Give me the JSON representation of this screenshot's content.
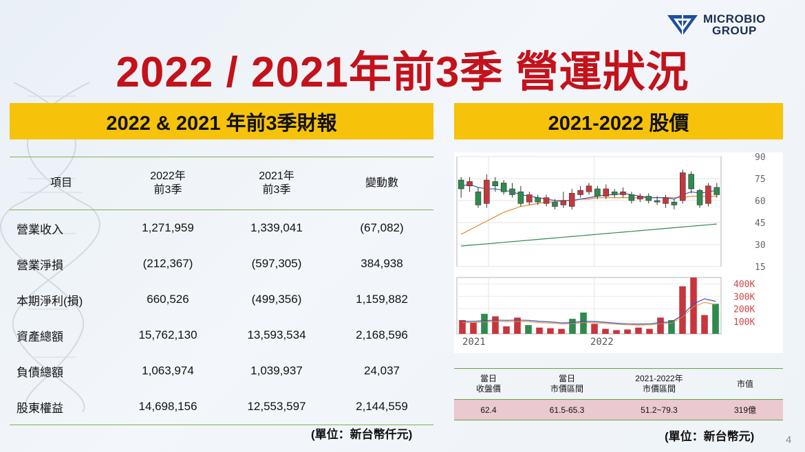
{
  "logo": {
    "line1": "MICROBIO",
    "line2": "GROUP"
  },
  "title": "2022 / 2021年前3季 營運狀況",
  "left_banner": "2022 & 2021 年前3季財報",
  "right_banner": "2021-2022 股價",
  "fin_table": {
    "headers": [
      "項目",
      "2022年\n前3季",
      "2021年\n前3季",
      "變動數"
    ],
    "h1": "項目",
    "h2a": "2022年",
    "h2b": "前3季",
    "h3a": "2021年",
    "h3b": "前3季",
    "h4": "變動數",
    "rows": [
      [
        "營業收入",
        "1,271,959",
        "1,339,041",
        "(67,082)"
      ],
      [
        "營業淨損",
        "(212,367)",
        "(597,305)",
        "384,938"
      ],
      [
        "本期淨利(損)",
        "660,526",
        "(499,356)",
        "1,159,882"
      ],
      [
        "資產總額",
        "15,762,130",
        "13,593,534",
        "2,168,596"
      ],
      [
        "負債總額",
        "1,063,974",
        "1,039,937",
        "24,037"
      ],
      [
        "股東權益",
        "14,698,156",
        "12,553,597",
        "2,144,559"
      ]
    ]
  },
  "fin_unit": "(單位：新台幣仟元)",
  "chart_data": [
    {
      "type": "candlestick",
      "y_ticks": [
        "90",
        "75",
        "60",
        "45",
        "30",
        "15"
      ],
      "ylim": [
        15,
        90
      ],
      "candles": [
        {
          "o": 74,
          "c": 68,
          "h": 76,
          "l": 62
        },
        {
          "o": 70,
          "c": 73,
          "h": 76,
          "l": 66
        },
        {
          "o": 66,
          "c": 57,
          "h": 69,
          "l": 55
        },
        {
          "o": 58,
          "c": 74,
          "h": 78,
          "l": 55
        },
        {
          "o": 73,
          "c": 70,
          "h": 76,
          "l": 66
        },
        {
          "o": 72,
          "c": 66,
          "h": 74,
          "l": 64
        },
        {
          "o": 68,
          "c": 64,
          "h": 72,
          "l": 62
        },
        {
          "o": 66,
          "c": 58,
          "h": 70,
          "l": 56
        },
        {
          "o": 59,
          "c": 64,
          "h": 66,
          "l": 57
        },
        {
          "o": 62,
          "c": 59,
          "h": 64,
          "l": 57
        },
        {
          "o": 58,
          "c": 62,
          "h": 64,
          "l": 56
        },
        {
          "o": 59,
          "c": 56,
          "h": 61,
          "l": 54
        },
        {
          "o": 57,
          "c": 60,
          "h": 66,
          "l": 55
        },
        {
          "o": 56,
          "c": 65,
          "h": 68,
          "l": 54
        },
        {
          "o": 64,
          "c": 67,
          "h": 70,
          "l": 62
        },
        {
          "o": 66,
          "c": 70,
          "h": 72,
          "l": 64
        },
        {
          "o": 68,
          "c": 63,
          "h": 70,
          "l": 61
        },
        {
          "o": 63,
          "c": 68,
          "h": 71,
          "l": 61
        },
        {
          "o": 66,
          "c": 64,
          "h": 68,
          "l": 62
        },
        {
          "o": 64,
          "c": 66,
          "h": 69,
          "l": 62
        },
        {
          "o": 64,
          "c": 60,
          "h": 66,
          "l": 58
        },
        {
          "o": 61,
          "c": 63,
          "h": 65,
          "l": 59
        },
        {
          "o": 63,
          "c": 60,
          "h": 65,
          "l": 58
        },
        {
          "o": 60,
          "c": 59,
          "h": 63,
          "l": 57
        },
        {
          "o": 58,
          "c": 62,
          "h": 64,
          "l": 55
        },
        {
          "o": 59,
          "c": 57,
          "h": 61,
          "l": 54
        },
        {
          "o": 60,
          "c": 79,
          "h": 81,
          "l": 58
        },
        {
          "o": 78,
          "c": 68,
          "h": 80,
          "l": 65
        },
        {
          "o": 67,
          "c": 57,
          "h": 68,
          "l": 55
        },
        {
          "o": 58,
          "c": 70,
          "h": 72,
          "l": 56
        },
        {
          "o": 69,
          "c": 64,
          "h": 72,
          "l": 62
        }
      ],
      "ma_short": [
        70,
        71,
        69,
        68,
        68,
        67,
        66,
        64,
        63,
        62,
        61,
        60,
        60,
        60,
        61,
        62,
        63,
        64,
        64,
        65,
        64,
        63,
        62,
        62,
        62,
        61,
        64,
        66,
        65,
        66,
        67
      ],
      "ma_mid": [
        37,
        40,
        43,
        46,
        49,
        52,
        54,
        56,
        57,
        58,
        59,
        59,
        60,
        60,
        61,
        61,
        62,
        62,
        62,
        62,
        62,
        62,
        62,
        62,
        62,
        62,
        62,
        63,
        63,
        63,
        63
      ],
      "ma_long": [
        29,
        29.5,
        30,
        30.5,
        31,
        31.5,
        32,
        32.5,
        33,
        33.5,
        34,
        34.5,
        35,
        35.5,
        36,
        36.5,
        37,
        37.5,
        38,
        38.5,
        39,
        39.5,
        40,
        40.5,
        41,
        41.5,
        42,
        42.5,
        43,
        43.5,
        44
      ]
    },
    {
      "type": "bar",
      "y_ticks": [
        "400K",
        "300K",
        "200K",
        "100K"
      ],
      "ylim": [
        0,
        450
      ],
      "x_ticks": [
        "2021",
        "2022"
      ],
      "volume": [
        {
          "v": 110,
          "up": true
        },
        {
          "v": 90,
          "up": true
        },
        {
          "v": 160,
          "up": false
        },
        {
          "v": 140,
          "up": true
        },
        {
          "v": 60,
          "up": true
        },
        {
          "v": 130,
          "up": true
        },
        {
          "v": 70,
          "up": false
        },
        {
          "v": 50,
          "up": true
        },
        {
          "v": 45,
          "up": true
        },
        {
          "v": 40,
          "up": true
        },
        {
          "v": 120,
          "up": false
        },
        {
          "v": 170,
          "up": false
        },
        {
          "v": 80,
          "up": true
        },
        {
          "v": 40,
          "up": true
        },
        {
          "v": 30,
          "up": true
        },
        {
          "v": 35,
          "up": true
        },
        {
          "v": 50,
          "up": true
        },
        {
          "v": 40,
          "up": true
        },
        {
          "v": 130,
          "up": true
        },
        {
          "v": 110,
          "up": false
        },
        {
          "v": 380,
          "up": true
        },
        {
          "v": 500,
          "up": true
        },
        {
          "v": 150,
          "up": true
        },
        {
          "v": 240,
          "up": false
        }
      ],
      "vol_ma": [
        100,
        100,
        105,
        110,
        108,
        110,
        108,
        100,
        95,
        88,
        90,
        100,
        98,
        92,
        85,
        80,
        78,
        80,
        90,
        95,
        150,
        240,
        280,
        260
      ]
    }
  ],
  "stock_table": {
    "h1a": "當日",
    "h1b": "收盤價",
    "h2a": "當日",
    "h2b": "市價區間",
    "h3a": "2021-2022年",
    "h3b": "市價區間",
    "h4": "市值",
    "v1": "62.4",
    "v2": "61.5-65.3",
    "v3": "51.2~79.3",
    "v4": "319億"
  },
  "stock_unit": "(單位：新台幣元)",
  "page_number": "4",
  "colors": {
    "title_red": "#c4121b",
    "banner_yellow": "#f6c20a",
    "rule_green": "#7fae4e",
    "value_pink": "#eac9d0",
    "candle_up": "#c8363c",
    "candle_down": "#2f8a4e"
  }
}
